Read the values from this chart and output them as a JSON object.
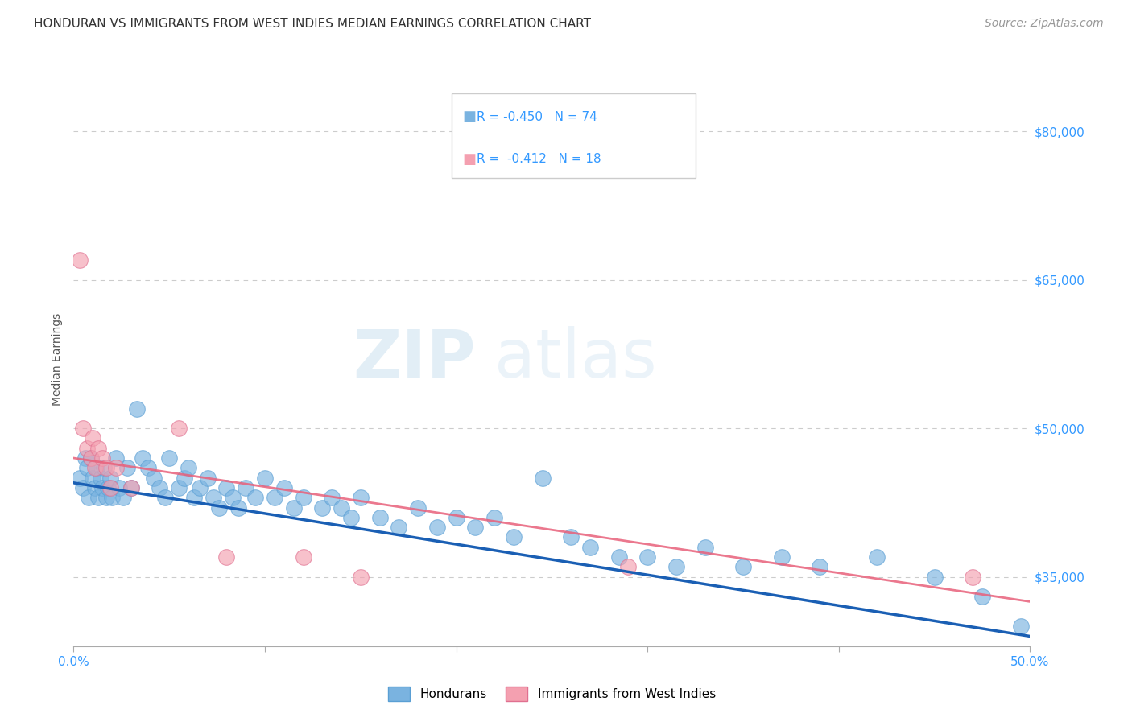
{
  "title": "HONDURAN VS IMMIGRANTS FROM WEST INDIES MEDIAN EARNINGS CORRELATION CHART",
  "source": "Source: ZipAtlas.com",
  "ylabel": "Median Earnings",
  "xlim": [
    0.0,
    0.5
  ],
  "ylim": [
    28000,
    86000
  ],
  "xticks": [
    0.0,
    0.1,
    0.2,
    0.3,
    0.4,
    0.5
  ],
  "xticklabels": [
    "0.0%",
    "",
    "",
    "",
    "",
    "50.0%"
  ],
  "ytick_values": [
    35000,
    50000,
    65000,
    80000
  ],
  "ytick_labels": [
    "$35,000",
    "$50,000",
    "$65,000",
    "$80,000"
  ],
  "grid_color": "#cccccc",
  "background_color": "#ffffff",
  "hondurans_color": "#7ab3e0",
  "west_indies_color": "#f4a0b0",
  "hondurans_line_color": "#1a5fb4",
  "west_indies_line_color": "#e8607a",
  "legend_R1": "-0.450",
  "legend_N1": "74",
  "legend_R2": "-0.412",
  "legend_N2": "18",
  "watermark_zip": "ZIP",
  "watermark_atlas": "atlas",
  "legend_label1": "Hondurans",
  "legend_label2": "Immigrants from West Indies",
  "hondurans_x": [
    0.003,
    0.005,
    0.006,
    0.007,
    0.008,
    0.009,
    0.01,
    0.011,
    0.012,
    0.013,
    0.014,
    0.015,
    0.016,
    0.017,
    0.018,
    0.019,
    0.02,
    0.022,
    0.024,
    0.026,
    0.028,
    0.03,
    0.033,
    0.036,
    0.039,
    0.042,
    0.045,
    0.048,
    0.05,
    0.055,
    0.058,
    0.06,
    0.063,
    0.066,
    0.07,
    0.073,
    0.076,
    0.08,
    0.083,
    0.086,
    0.09,
    0.095,
    0.1,
    0.105,
    0.11,
    0.115,
    0.12,
    0.13,
    0.135,
    0.14,
    0.145,
    0.15,
    0.16,
    0.17,
    0.18,
    0.19,
    0.2,
    0.21,
    0.22,
    0.23,
    0.245,
    0.26,
    0.27,
    0.285,
    0.3,
    0.315,
    0.33,
    0.35,
    0.37,
    0.39,
    0.42,
    0.45,
    0.475,
    0.495
  ],
  "hondurans_y": [
    45000,
    44000,
    47000,
    46000,
    43000,
    47000,
    45000,
    44000,
    46000,
    43000,
    45000,
    44000,
    46000,
    43000,
    44000,
    45000,
    43000,
    47000,
    44000,
    43000,
    46000,
    44000,
    52000,
    47000,
    46000,
    45000,
    44000,
    43000,
    47000,
    44000,
    45000,
    46000,
    43000,
    44000,
    45000,
    43000,
    42000,
    44000,
    43000,
    42000,
    44000,
    43000,
    45000,
    43000,
    44000,
    42000,
    43000,
    42000,
    43000,
    42000,
    41000,
    43000,
    41000,
    40000,
    42000,
    40000,
    41000,
    40000,
    41000,
    39000,
    45000,
    39000,
    38000,
    37000,
    37000,
    36000,
    38000,
    36000,
    37000,
    36000,
    37000,
    35000,
    33000,
    30000
  ],
  "west_indies_x": [
    0.003,
    0.005,
    0.007,
    0.009,
    0.01,
    0.011,
    0.013,
    0.015,
    0.017,
    0.019,
    0.022,
    0.03,
    0.055,
    0.08,
    0.12,
    0.15,
    0.29,
    0.47
  ],
  "west_indies_y": [
    67000,
    50000,
    48000,
    47000,
    49000,
    46000,
    48000,
    47000,
    46000,
    44000,
    46000,
    44000,
    50000,
    37000,
    37000,
    35000,
    36000,
    35000
  ],
  "title_fontsize": 11,
  "source_fontsize": 10,
  "axis_label_fontsize": 10,
  "tick_fontsize": 11,
  "legend_fontsize": 11,
  "watermark_fontsize_zip": 60,
  "watermark_fontsize_atlas": 60
}
